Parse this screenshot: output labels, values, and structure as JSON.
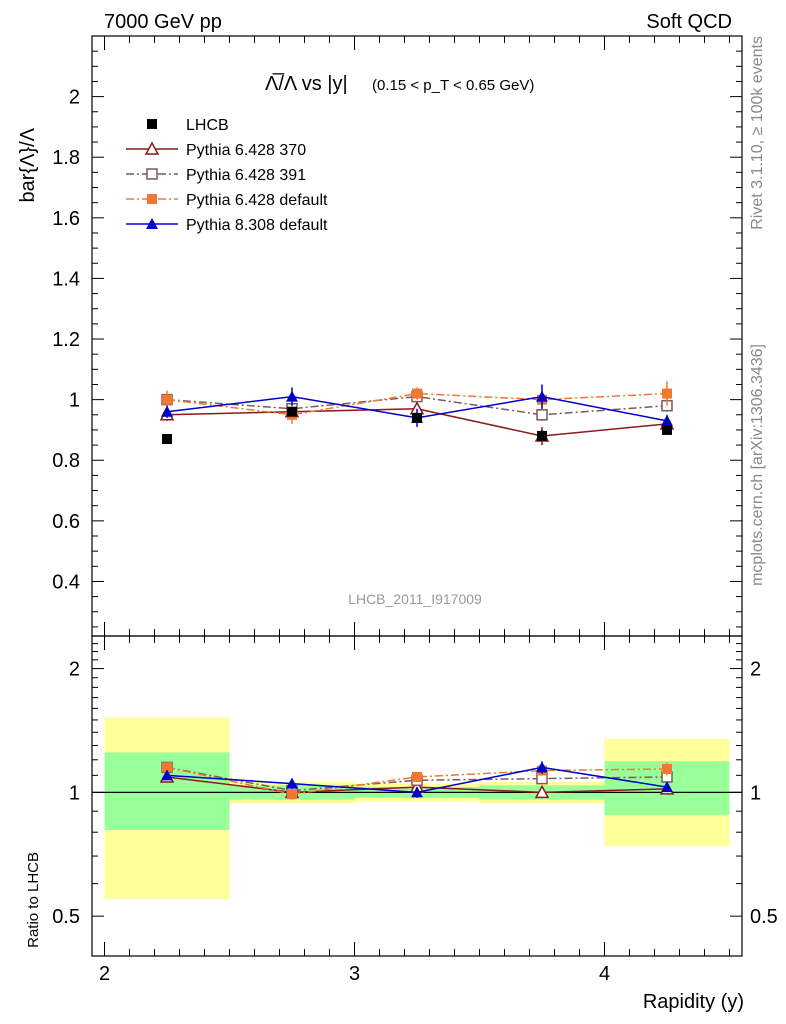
{
  "header": {
    "left": "7000 GeV pp",
    "right": "Soft QCD"
  },
  "side_labels": {
    "rivet": "Rivet 3.1.10, ≥ 100k events",
    "mcplots": "mcplots.cern.ch [arXiv:1306.3436]"
  },
  "watermark": "LHCB_2011_I917009",
  "colors": {
    "LHCB": "#000000",
    "Pythia 6.428 370": "#8b1a1a",
    "Pythia 6.428 391": "#7b5a5a",
    "Pythia 6.428 default": "#f07830",
    "Pythia 8.308 default": "#0000cc",
    "band_inner": "#99ff99",
    "band_outer": "#ffff99"
  },
  "chart_data": [
    {
      "type": "scatter",
      "title_main": "Λ̅/Λ vs |y|",
      "title_cut": "(0.15 < p_T < 0.65 GeV)",
      "ylabel": "bar{Λ}/Λ",
      "xlim": [
        1.95,
        4.55
      ],
      "ylim": [
        0.22,
        2.2
      ],
      "yticks": [
        "0.4",
        "0.6",
        "0.8",
        "1",
        "1.2",
        "1.4",
        "1.6",
        "1.8",
        "2"
      ],
      "legend_position": "top-left",
      "x": [
        2.25,
        2.75,
        3.25,
        3.75,
        4.25
      ],
      "series": [
        {
          "name": "LHCB",
          "values": [
            0.87,
            0.96,
            0.94,
            0.88,
            0.9
          ],
          "errors": [
            0,
            0,
            0,
            0,
            0
          ],
          "marker": "filled-square",
          "line": "none"
        },
        {
          "name": "Pythia 6.428 370",
          "values": [
            0.95,
            0.96,
            0.97,
            0.88,
            0.92
          ],
          "errors": [
            0.02,
            0.02,
            0.02,
            0.03,
            0.02
          ],
          "marker": "open-triangle",
          "line": "solid"
        },
        {
          "name": "Pythia 6.428 391",
          "values": [
            1.0,
            0.97,
            1.01,
            0.95,
            0.98
          ],
          "errors": [
            0.02,
            0.02,
            0.02,
            0.02,
            0.02
          ],
          "marker": "open-square",
          "line": "dashdot"
        },
        {
          "name": "Pythia 6.428 default",
          "values": [
            1.0,
            0.95,
            1.02,
            1.0,
            1.02
          ],
          "errors": [
            0.03,
            0.03,
            0.02,
            0.03,
            0.04
          ],
          "marker": "filled-square",
          "line": "dashdot"
        },
        {
          "name": "Pythia 8.308 default",
          "values": [
            0.96,
            1.01,
            0.94,
            1.01,
            0.93
          ],
          "errors": [
            0.02,
            0.03,
            0.03,
            0.04,
            0.02
          ],
          "marker": "filled-triangle",
          "line": "solid"
        }
      ]
    },
    {
      "type": "scatter",
      "ylabel": "Ratio to LHCB",
      "xlabel": "Rapidity (y)",
      "scale": "log",
      "xlim": [
        1.95,
        4.55
      ],
      "ylim": [
        0.4,
        2.4
      ],
      "xticks": [
        "2",
        "3",
        "4"
      ],
      "yticks": [
        "0.5",
        "1",
        "2"
      ],
      "bands": [
        {
          "x": [
            2.0,
            2.5
          ],
          "inner": [
            0.81,
            1.25
          ],
          "outer": [
            0.55,
            1.52
          ]
        },
        {
          "x": [
            2.5,
            3.0
          ],
          "inner": [
            0.96,
            1.04
          ],
          "outer": [
            0.94,
            1.06
          ]
        },
        {
          "x": [
            3.0,
            3.5
          ],
          "inner": [
            0.97,
            1.03
          ],
          "outer": [
            0.95,
            1.05
          ]
        },
        {
          "x": [
            3.5,
            4.0
          ],
          "inner": [
            0.96,
            1.04
          ],
          "outer": [
            0.94,
            1.06
          ]
        },
        {
          "x": [
            4.0,
            4.5
          ],
          "inner": [
            0.88,
            1.19
          ],
          "outer": [
            0.74,
            1.35
          ]
        }
      ],
      "x": [
        2.25,
        2.75,
        3.25,
        3.75,
        4.25
      ],
      "series": [
        {
          "name": "Pythia 6.428 370",
          "values": [
            1.09,
            1.0,
            1.03,
            1.0,
            1.02
          ],
          "errors": [
            0.02,
            0.02,
            0.02,
            0.02,
            0.02
          ]
        },
        {
          "name": "Pythia 6.428 391",
          "values": [
            1.15,
            1.01,
            1.07,
            1.08,
            1.09
          ],
          "errors": [
            0.02,
            0.02,
            0.02,
            0.02,
            0.02
          ]
        },
        {
          "name": "Pythia 6.428 default",
          "values": [
            1.15,
            0.99,
            1.09,
            1.13,
            1.14
          ],
          "errors": [
            0.03,
            0.03,
            0.03,
            0.03,
            0.04
          ]
        },
        {
          "name": "Pythia 8.308 default",
          "values": [
            1.1,
            1.05,
            1.0,
            1.15,
            1.03
          ],
          "errors": [
            0.02,
            0.03,
            0.03,
            0.04,
            0.02
          ]
        }
      ]
    }
  ]
}
